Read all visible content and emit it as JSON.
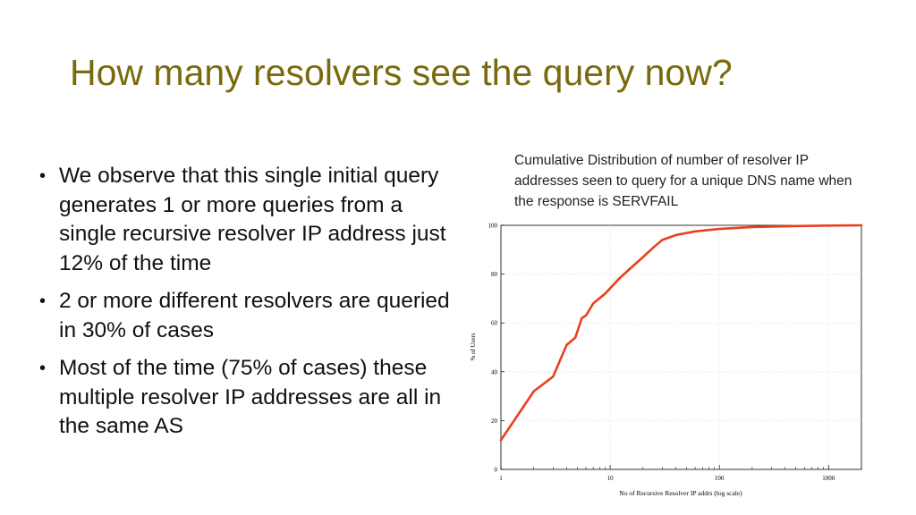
{
  "slide": {
    "title": "How many resolvers see the query now?",
    "bullets": [
      "We observe that this single initial query generates 1 or more queries from a single recursive resolver IP address just 12% of the time",
      "2 or more different resolvers are queried in 30% of cases",
      "Most of the time (75% of cases) these multiple resolver IP addresses are all in the same AS"
    ],
    "caption": "Cumulative Distribution of number of resolver IP addresses seen to query for a unique DNS name when the response is SERVFAIL"
  },
  "colors": {
    "title": "#7a6a0e",
    "line": "#e8401c"
  },
  "chart_data": {
    "type": "line",
    "title": "",
    "xlabel": "No of Recursive Resolver IP addrs (log scale)",
    "ylabel": "% of Users",
    "xscale": "log",
    "xlim": [
      1,
      2000
    ],
    "ylim": [
      0,
      100
    ],
    "xticks": [
      1,
      10,
      100,
      1000
    ],
    "xtick_labels": [
      "1",
      "10",
      "100",
      "1000"
    ],
    "yticks": [
      0,
      20,
      40,
      60,
      80,
      100
    ],
    "ytick_labels": [
      "0",
      "20",
      "40",
      "60",
      "80",
      "100"
    ],
    "grid": true,
    "series": [
      {
        "name": "",
        "x": [
          1,
          2,
          3,
          4,
          4.8,
          5.5,
          6,
          7,
          9,
          12,
          15,
          20,
          25,
          30,
          40,
          60,
          100,
          200,
          500,
          1000,
          2000
        ],
        "y": [
          12,
          32,
          38,
          51,
          54,
          62,
          63,
          68,
          72,
          78,
          82,
          87,
          91,
          94,
          96,
          97.5,
          98.5,
          99.3,
          99.7,
          99.9,
          100
        ]
      }
    ]
  }
}
